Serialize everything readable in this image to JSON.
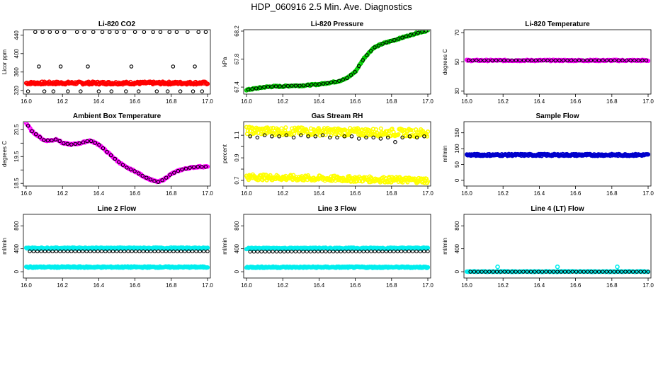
{
  "figure_title": "HDP_060916  2.5 Min. Ave. Diagnostics",
  "chart_data": [
    {
      "type": "scatter",
      "title": "Li-820 CO2",
      "ylabel": "Licor ppm",
      "xlim": [
        16.0,
        17.0
      ],
      "ylim": [
        312,
        452
      ],
      "xticks": [
        "16.0",
        "16.2",
        "16.4",
        "16.6",
        "16.8",
        "17.0"
      ],
      "xtick_values": [
        16.0,
        16.2,
        16.4,
        16.6,
        16.8,
        17.0
      ],
      "yticks": [
        "320",
        "360",
        "400",
        "440"
      ],
      "ytick_values": [
        320,
        360,
        400,
        440
      ],
      "series": [
        {
          "name": "CO2 high-rate",
          "color": "#ff0000",
          "style": "band",
          "x": [
            16.0,
            17.0
          ],
          "y": [
            336,
            336
          ],
          "spread": 3
        },
        {
          "name": "CO2 2.5 min avg",
          "color": "#000000",
          "style": "circles",
          "x": [
            16.05,
            16.09,
            16.13,
            16.17,
            16.21,
            16.28,
            16.32,
            16.37,
            16.42,
            16.46,
            16.5,
            16.54,
            16.6,
            16.65,
            16.7,
            16.74,
            16.79,
            16.83,
            16.89,
            16.95,
            16.99,
            16.01,
            16.1,
            16.15,
            16.23,
            16.3,
            16.4,
            16.47,
            16.55,
            16.62,
            16.72,
            16.78,
            16.85,
            16.92,
            16.97,
            16.07,
            16.19,
            16.34,
            16.58,
            16.81,
            16.93
          ],
          "y": [
            447,
            447,
            447,
            447,
            447,
            447,
            447,
            447,
            447,
            447,
            447,
            447,
            447,
            447,
            447,
            447,
            447,
            447,
            447,
            447,
            447,
            318,
            318,
            318,
            318,
            318,
            318,
            318,
            318,
            318,
            318,
            318,
            318,
            318,
            318,
            372,
            372,
            372,
            372,
            372,
            372
          ]
        }
      ]
    },
    {
      "type": "scatter",
      "title": "Li-820 Pressure",
      "ylabel": "kPa",
      "xlim": [
        16.0,
        17.0
      ],
      "ylim": [
        67.3,
        68.22
      ],
      "xticks": [
        "16.0",
        "16.2",
        "16.4",
        "16.6",
        "16.8",
        "17.0"
      ],
      "xtick_values": [
        16.0,
        16.2,
        16.4,
        16.6,
        16.8,
        17.0
      ],
      "yticks": [
        "67.4",
        "67.8",
        "68.2"
      ],
      "ytick_values": [
        67.4,
        67.8,
        68.2
      ],
      "series": [
        {
          "name": "Pressure",
          "color": "#00cc00",
          "style": "curve",
          "x": [
            16.0,
            16.05,
            16.1,
            16.15,
            16.2,
            16.25,
            16.3,
            16.35,
            16.4,
            16.45,
            16.5,
            16.55,
            16.6,
            16.65,
            16.7,
            16.75,
            16.8,
            16.85,
            16.9,
            16.95,
            17.0
          ],
          "y": [
            67.36,
            67.38,
            67.4,
            67.41,
            67.41,
            67.42,
            67.42,
            67.43,
            67.44,
            67.46,
            67.48,
            67.52,
            67.62,
            67.82,
            67.96,
            68.02,
            68.06,
            68.1,
            68.14,
            68.18,
            68.21
          ]
        }
      ]
    },
    {
      "type": "scatter",
      "title": "Li-820 Temperature",
      "ylabel": "degrees C",
      "xlim": [
        16.0,
        17.0
      ],
      "ylim": [
        28,
        72
      ],
      "xticks": [
        "16.0",
        "16.2",
        "16.4",
        "16.6",
        "16.8",
        "17.0"
      ],
      "xtick_values": [
        16.0,
        16.2,
        16.4,
        16.6,
        16.8,
        17.0
      ],
      "yticks": [
        "30",
        "50",
        "70"
      ],
      "ytick_values": [
        30,
        50,
        70
      ],
      "series": [
        {
          "name": "Temperature",
          "color": "#ff00ff",
          "style": "curve",
          "x": [
            16.0,
            17.0
          ],
          "y": [
            51,
            51
          ]
        }
      ]
    },
    {
      "type": "scatter",
      "title": "Ambient Box Temperature",
      "ylabel": "degrees C",
      "xlim": [
        16.0,
        17.0
      ],
      "ylim": [
        18.4,
        20.8
      ],
      "xticks": [
        "16.0",
        "16.2",
        "16.4",
        "16.6",
        "16.8",
        "17.0"
      ],
      "xtick_values": [
        16.0,
        16.2,
        16.4,
        16.6,
        16.8,
        17.0
      ],
      "yticks": [
        "18.5",
        "19.5",
        "20.5"
      ],
      "ytick_values": [
        18.5,
        19.5,
        20.5
      ],
      "yticks_minor": [
        "19",
        "20"
      ],
      "ytick_minor_values": [
        19.0,
        20.0
      ],
      "series": [
        {
          "name": "Box temperature",
          "color": "#ff00ff",
          "style": "curve",
          "x": [
            16.0,
            16.03,
            16.07,
            16.1,
            16.14,
            16.17,
            16.2,
            16.25,
            16.3,
            16.35,
            16.4,
            16.45,
            16.5,
            16.55,
            16.6,
            16.65,
            16.7,
            16.73,
            16.76,
            16.8,
            16.85,
            16.9,
            16.95,
            17.0
          ],
          "y": [
            20.75,
            20.45,
            20.25,
            20.1,
            20.1,
            20.15,
            20.0,
            19.95,
            20.0,
            20.1,
            19.95,
            19.65,
            19.35,
            19.1,
            18.95,
            18.75,
            18.6,
            18.55,
            18.65,
            18.85,
            19.0,
            19.08,
            19.12,
            19.12
          ]
        }
      ]
    },
    {
      "type": "scatter",
      "title": "Gas Stream RH",
      "ylabel": "percent",
      "xlim": [
        16.0,
        17.0
      ],
      "ylim": [
        0.65,
        1.22
      ],
      "xticks": [
        "16.0",
        "16.2",
        "16.4",
        "16.6",
        "16.8",
        "17.0"
      ],
      "xtick_values": [
        16.0,
        16.2,
        16.4,
        16.6,
        16.8,
        17.0
      ],
      "yticks": [
        "0.7",
        "0.9",
        "1.1"
      ],
      "ytick_values": [
        0.7,
        0.9,
        1.1
      ],
      "yticks_minor": [
        "0.8",
        "1.0"
      ],
      "ytick_minor_values": [
        0.8,
        1.0
      ],
      "series": [
        {
          "name": "RH high band",
          "color": "#ffff00",
          "style": "band",
          "x": [
            16.0,
            17.0
          ],
          "y": [
            1.14,
            1.12
          ],
          "spread": 0.035
        },
        {
          "name": "RH low band",
          "color": "#ffff00",
          "style": "band",
          "x": [
            16.0,
            17.0
          ],
          "y": [
            0.73,
            0.7
          ],
          "spread": 0.025
        },
        {
          "name": "RH avg",
          "color": "#000000",
          "style": "circles",
          "x": [
            16.02,
            16.06,
            16.1,
            16.14,
            16.18,
            16.22,
            16.26,
            16.3,
            16.34,
            16.38,
            16.42,
            16.46,
            16.5,
            16.54,
            16.58,
            16.62,
            16.66,
            16.7,
            16.74,
            16.78,
            16.82,
            16.86,
            16.9,
            16.94,
            16.98
          ],
          "y": [
            1.09,
            1.08,
            1.1,
            1.09,
            1.09,
            1.1,
            1.08,
            1.1,
            1.09,
            1.09,
            1.1,
            1.08,
            1.08,
            1.09,
            1.09,
            1.07,
            1.08,
            1.08,
            1.07,
            1.08,
            1.04,
            1.08,
            1.09,
            1.08,
            1.09
          ]
        }
      ]
    },
    {
      "type": "scatter",
      "title": "Sample Flow",
      "ylabel": "ml/min",
      "xlim": [
        16.0,
        17.0
      ],
      "ylim": [
        -18,
        185
      ],
      "xticks": [
        "16.0",
        "16.2",
        "16.4",
        "16.6",
        "16.8",
        "17.0"
      ],
      "xtick_values": [
        16.0,
        16.2,
        16.4,
        16.6,
        16.8,
        17.0
      ],
      "yticks": [
        "0",
        "50",
        "100",
        "150"
      ],
      "ytick_values": [
        0,
        50,
        100,
        150
      ],
      "series": [
        {
          "name": "Sample flow",
          "color": "#0000cc",
          "style": "band",
          "x": [
            16.0,
            17.0
          ],
          "y": [
            80,
            80
          ],
          "spread": 3
        }
      ]
    },
    {
      "type": "scatter",
      "title": "Line 2 Flow",
      "ylabel": "ml/min",
      "xlim": [
        16.0,
        17.0
      ],
      "ylim": [
        -110,
        1000
      ],
      "xticks": [
        "16.0",
        "16.2",
        "16.4",
        "16.6",
        "16.8",
        "17.0"
      ],
      "xtick_values": [
        16.0,
        16.2,
        16.4,
        16.6,
        16.8,
        17.0
      ],
      "yticks": [
        "0",
        "400",
        "800"
      ],
      "ytick_values": [
        0,
        400,
        800
      ],
      "series": [
        {
          "name": "Line 2 high",
          "color": "#00eeee",
          "style": "band",
          "x": [
            16.0,
            17.0
          ],
          "y": [
            410,
            410
          ],
          "spread": 12
        },
        {
          "name": "Line 2 low",
          "color": "#00eeee",
          "style": "band",
          "x": [
            16.0,
            17.0
          ],
          "y": [
            80,
            80
          ],
          "spread": 12
        },
        {
          "name": "Line 2 avg",
          "color": "#000000",
          "style": "circles",
          "x": [
            16.02,
            17.0
          ],
          "y": [
            355,
            355
          ],
          "count": 48
        }
      ]
    },
    {
      "type": "scatter",
      "title": "Line 3 Flow",
      "ylabel": "ml/min",
      "xlim": [
        16.0,
        17.0
      ],
      "ylim": [
        -110,
        1000
      ],
      "xticks": [
        "16.0",
        "16.2",
        "16.4",
        "16.6",
        "16.8",
        "17.0"
      ],
      "xtick_values": [
        16.0,
        16.2,
        16.4,
        16.6,
        16.8,
        17.0
      ],
      "yticks": [
        "0",
        "400",
        "800"
      ],
      "ytick_values": [
        0,
        400,
        800
      ],
      "series": [
        {
          "name": "Line 3 high",
          "color": "#00eeee",
          "style": "band",
          "x": [
            16.0,
            17.0
          ],
          "y": [
            405,
            410
          ],
          "spread": 12
        },
        {
          "name": "Line 3 low",
          "color": "#00eeee",
          "style": "band",
          "x": [
            16.0,
            17.0
          ],
          "y": [
            78,
            78
          ],
          "spread": 12
        },
        {
          "name": "Line 3 avg",
          "color": "#000000",
          "style": "circles",
          "x": [
            16.02,
            17.0
          ],
          "y": [
            350,
            355
          ],
          "count": 48
        }
      ]
    },
    {
      "type": "scatter",
      "title": "Line 4 (LT) Flow",
      "ylabel": "ml/min",
      "xlim": [
        16.0,
        17.0
      ],
      "ylim": [
        -110,
        1000
      ],
      "xticks": [
        "16.0",
        "16.2",
        "16.4",
        "16.6",
        "16.8",
        "17.0"
      ],
      "xtick_values": [
        16.0,
        16.2,
        16.4,
        16.6,
        16.8,
        17.0
      ],
      "yticks": [
        "0",
        "400",
        "800"
      ],
      "ytick_values": [
        0,
        400,
        800
      ],
      "series": [
        {
          "name": "Line 4 flow",
          "color": "#00eeee",
          "style": "band",
          "x": [
            16.0,
            17.0
          ],
          "y": [
            2,
            2
          ],
          "spread": 6
        },
        {
          "name": "Line 4 spikes",
          "color": "#00eeee",
          "style": "points",
          "x": [
            16.17,
            16.5,
            16.83
          ],
          "y": [
            85,
            85,
            85
          ]
        },
        {
          "name": "Line 4 avg",
          "color": "#000000",
          "style": "circles",
          "x": [
            16.02,
            17.0
          ],
          "y": [
            0,
            0
          ],
          "count": 48
        }
      ]
    }
  ]
}
